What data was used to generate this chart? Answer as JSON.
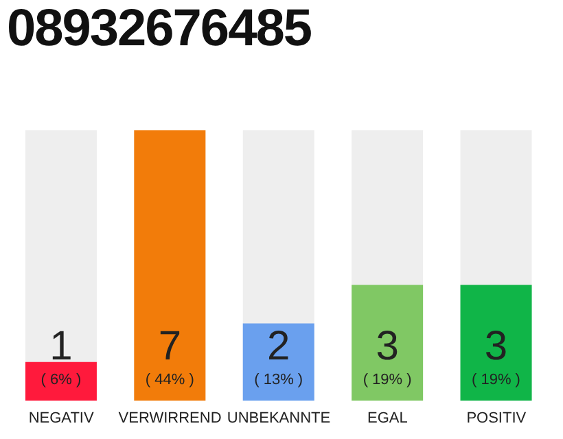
{
  "chart_data": {
    "type": "bar",
    "title": "08932676485",
    "categories": [
      "NEGATIV",
      "VERWIRREND",
      "UNBEKANNTE",
      "EGAL",
      "POSITIV"
    ],
    "values": [
      1,
      7,
      2,
      3,
      3
    ],
    "colors": [
      "#ff1a3c",
      "#f27c0a",
      "#6aa0ee",
      "#80c864",
      "#10b548"
    ],
    "data_labels": true,
    "annotations": [
      "( 6% )",
      "( 44% )",
      "( 13% )",
      "( 19% )",
      "( 19% )"
    ]
  }
}
